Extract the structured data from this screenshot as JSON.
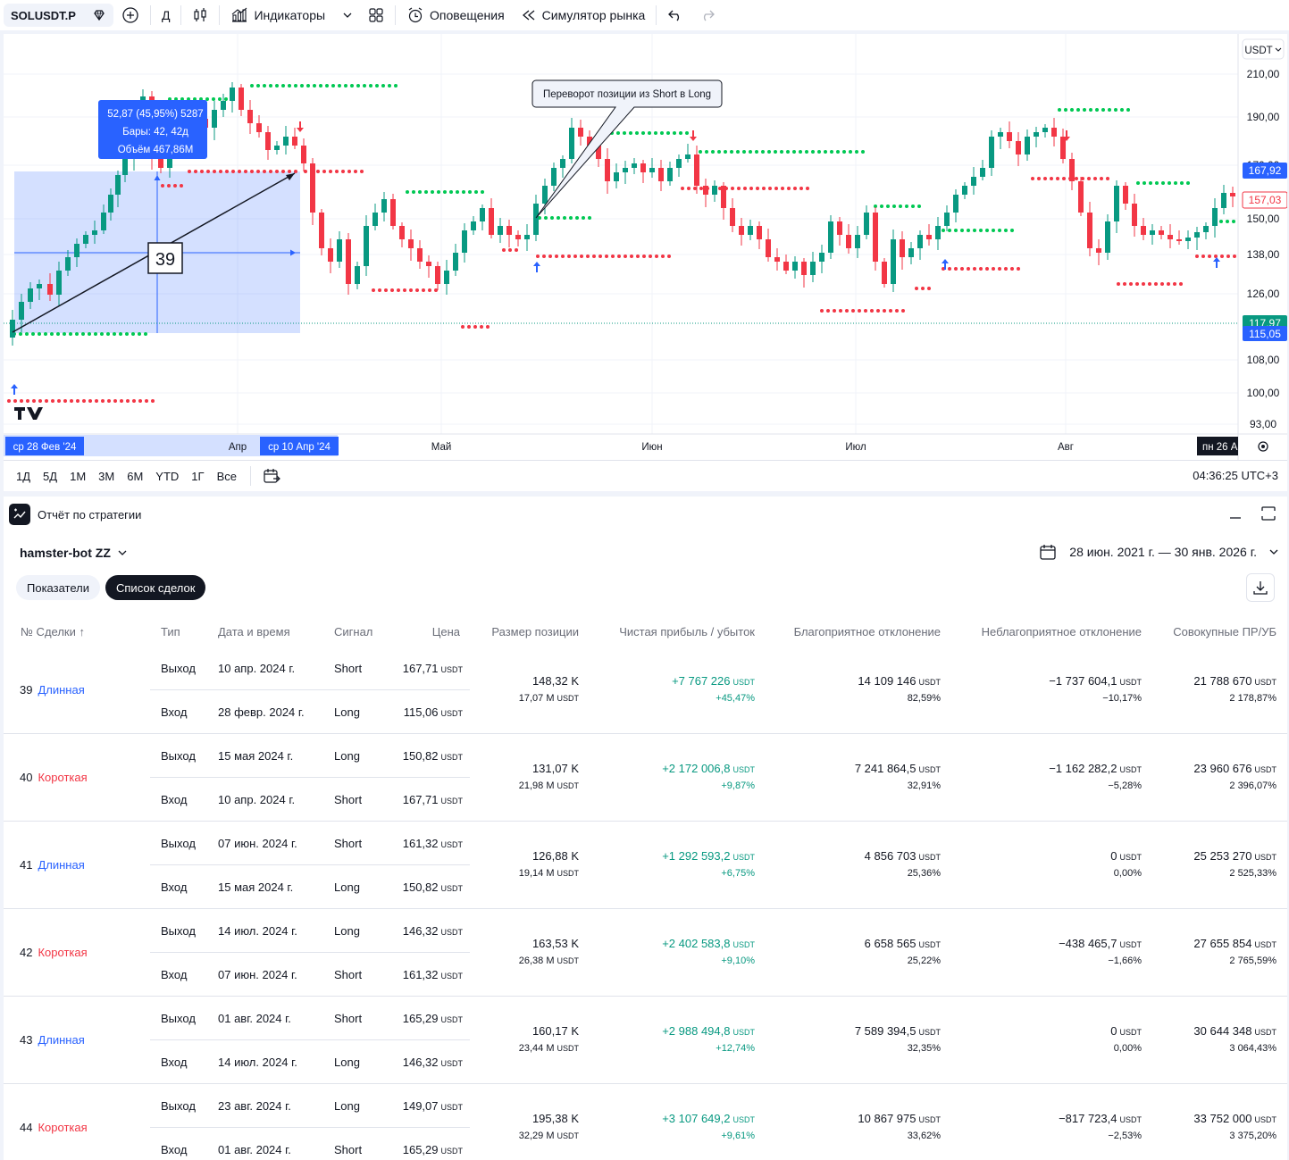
{
  "toolbar": {
    "symbol": "SOLUSDT.P",
    "interval": "Д",
    "indicators_label": "Индикаторы",
    "alerts_label": "Оповещения",
    "replay_label": "Симулятор рынка"
  },
  "chart": {
    "currency": "USDT",
    "price_labels": [
      "210,00",
      "190,00",
      "170,00",
      "150,00",
      "138,00",
      "126,00",
      "108,00",
      "100,00",
      "93,00"
    ],
    "last_price": "167,92",
    "dashed_price": "157,03",
    "level_price_top": "117,97",
    "level_price_bot": "115,05",
    "time_labels": [
      "Апр",
      "Май",
      "Июн",
      "Июл",
      "Авг"
    ],
    "time_highlight_left": "ср 28 Фев '24",
    "time_highlight_right": "ср 10 Апр '24",
    "time_highlight_end": "пн 26 А",
    "measure": {
      "line1": "52,87 (45,95%) 5287",
      "line2": "Бары: 42, 42д",
      "line3": "Объём 467,86M"
    },
    "trade_label": "39",
    "callout": "Переворот позиции из Short в Long",
    "colors": {
      "up": "#089981",
      "down": "#f23645",
      "dots_up": "#00c853",
      "dots_down": "#f23645",
      "accent": "#2962ff"
    }
  },
  "range_buttons": [
    "1Д",
    "5Д",
    "1М",
    "3М",
    "6М",
    "YTD",
    "1Г",
    "Все"
  ],
  "clock": "04:36:25 UTC+3",
  "strategy": {
    "panel_title": "Отчёт по стратегии",
    "name": "hamster-bot ZZ",
    "date_range": "28 июн. 2021 г. — 30 янв. 2026 г.",
    "tabs": [
      "Показатели",
      "Список сделок"
    ],
    "unit": "USDT",
    "columns": [
      "№ Сделки ↑",
      "Тип",
      "Дата и время",
      "Сигнал",
      "Цена",
      "Размер позиции",
      "Чистая прибыль / убыток",
      "Благоприятное отклонение",
      "Неблагоприятное отклонение",
      "Совокупные ПР/УБ"
    ],
    "trades": [
      {
        "num": "39",
        "kind": "Длинная",
        "side": "long",
        "exit": {
          "type": "Выход",
          "date": "10 апр. 2024 г.",
          "signal": "Short",
          "price": "167,71"
        },
        "entry": {
          "type": "Вход",
          "date": "28 февр. 2024 г.",
          "signal": "Long",
          "price": "115,06"
        },
        "size1": "148,32 K",
        "size2": "17,07 M",
        "pnl1": "+7 767 226",
        "pnl2": "+45,47%",
        "fav1": "14 109 146",
        "fav2": "82,59%",
        "adv1": "−1 737 604,1",
        "adv2": "−10,17%",
        "cum1": "21 788 670",
        "cum2": "2 178,87%"
      },
      {
        "num": "40",
        "kind": "Короткая",
        "side": "short",
        "exit": {
          "type": "Выход",
          "date": "15 мая 2024 г.",
          "signal": "Long",
          "price": "150,82"
        },
        "entry": {
          "type": "Вход",
          "date": "10 апр. 2024 г.",
          "signal": "Short",
          "price": "167,71"
        },
        "size1": "131,07 K",
        "size2": "21,98 M",
        "pnl1": "+2 172 006,8",
        "pnl2": "+9,87%",
        "fav1": "7 241 864,5",
        "fav2": "32,91%",
        "adv1": "−1 162 282,2",
        "adv2": "−5,28%",
        "cum1": "23 960 676",
        "cum2": "2 396,07%"
      },
      {
        "num": "41",
        "kind": "Длинная",
        "side": "long",
        "exit": {
          "type": "Выход",
          "date": "07 июн. 2024 г.",
          "signal": "Short",
          "price": "161,32"
        },
        "entry": {
          "type": "Вход",
          "date": "15 мая 2024 г.",
          "signal": "Long",
          "price": "150,82"
        },
        "size1": "126,88 K",
        "size2": "19,14 M",
        "pnl1": "+1 292 593,2",
        "pnl2": "+6,75%",
        "fav1": "4 856 703",
        "fav2": "25,36%",
        "adv1": "0",
        "adv2": "0,00%",
        "cum1": "25 253 270",
        "cum2": "2 525,33%"
      },
      {
        "num": "42",
        "kind": "Короткая",
        "side": "short",
        "exit": {
          "type": "Выход",
          "date": "14 июл. 2024 г.",
          "signal": "Long",
          "price": "146,32"
        },
        "entry": {
          "type": "Вход",
          "date": "07 июн. 2024 г.",
          "signal": "Short",
          "price": "161,32"
        },
        "size1": "163,53 K",
        "size2": "26,38 M",
        "pnl1": "+2 402 583,8",
        "pnl2": "+9,10%",
        "fav1": "6 658 565",
        "fav2": "25,22%",
        "adv1": "−438 465,7",
        "adv2": "−1,66%",
        "cum1": "27 655 854",
        "cum2": "2 765,59%"
      },
      {
        "num": "43",
        "kind": "Длинная",
        "side": "long",
        "exit": {
          "type": "Выход",
          "date": "01 авг. 2024 г.",
          "signal": "Short",
          "price": "165,29"
        },
        "entry": {
          "type": "Вход",
          "date": "14 июл. 2024 г.",
          "signal": "Long",
          "price": "146,32"
        },
        "size1": "160,17 K",
        "size2": "23,44 M",
        "pnl1": "+2 988 494,8",
        "pnl2": "+12,74%",
        "fav1": "7 589 394,5",
        "fav2": "32,35%",
        "adv1": "0",
        "adv2": "0,00%",
        "cum1": "30 644 348",
        "cum2": "3 064,43%"
      },
      {
        "num": "44",
        "kind": "Короткая",
        "side": "short",
        "exit": {
          "type": "Выход",
          "date": "23 авг. 2024 г.",
          "signal": "Long",
          "price": "149,07"
        },
        "entry": {
          "type": "Вход",
          "date": "01 авг. 2024 г.",
          "signal": "Short",
          "price": "165,29"
        },
        "size1": "195,38 K",
        "size2": "32,29 M",
        "pnl1": "+3 107 649,2",
        "pnl2": "+9,61%",
        "fav1": "10 867 975",
        "fav2": "33,62%",
        "adv1": "−817 723,4",
        "adv2": "−2,53%",
        "cum1": "33 752 000",
        "cum2": "3 375,20%"
      }
    ]
  }
}
